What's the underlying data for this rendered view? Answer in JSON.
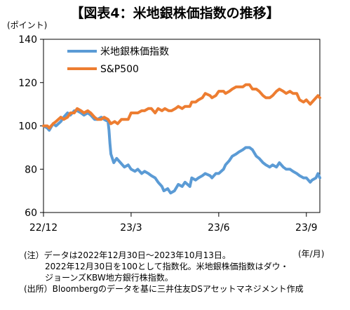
{
  "chart_data": {
    "type": "line",
    "title": "【図表4：米地銀株価指数の推移】",
    "ylabel": "(ポイント)",
    "xunit": "(年/月)",
    "ylim": [
      60,
      140
    ],
    "yticks": [
      60,
      80,
      100,
      120,
      140
    ],
    "xticks": [
      {
        "label": "22/12",
        "x": "2022-12-30"
      },
      {
        "label": "23/3",
        "x": "2023-03-31"
      },
      {
        "label": "23/6",
        "x": "2023-06-30"
      },
      {
        "label": "23/9",
        "x": "2023-09-29"
      }
    ],
    "xlim": [
      "2022-12-30",
      "2023-10-13"
    ],
    "grid": false,
    "legend_position": "top-left",
    "series": [
      {
        "name": "米地銀株価指数",
        "color": "#5B9BD5",
        "points": [
          [
            "2022-12-30",
            100
          ],
          [
            "2023-01-03",
            99
          ],
          [
            "2023-01-05",
            98
          ],
          [
            "2023-01-09",
            101
          ],
          [
            "2023-01-12",
            100
          ],
          [
            "2023-01-17",
            102
          ],
          [
            "2023-01-20",
            104
          ],
          [
            "2023-01-24",
            106
          ],
          [
            "2023-01-27",
            105
          ],
          [
            "2023-01-31",
            107
          ],
          [
            "2023-02-03",
            107
          ],
          [
            "2023-02-07",
            106
          ],
          [
            "2023-02-10",
            105
          ],
          [
            "2023-02-14",
            106
          ],
          [
            "2023-02-17",
            105
          ],
          [
            "2023-02-21",
            103
          ],
          [
            "2023-02-24",
            103
          ],
          [
            "2023-02-28",
            104
          ],
          [
            "2023-03-03",
            103
          ],
          [
            "2023-03-07",
            102
          ],
          [
            "2023-03-08",
            98
          ],
          [
            "2023-03-09",
            92
          ],
          [
            "2023-03-10",
            87
          ],
          [
            "2023-03-13",
            83
          ],
          [
            "2023-03-16",
            85
          ],
          [
            "2023-03-20",
            83
          ],
          [
            "2023-03-24",
            81
          ],
          [
            "2023-03-28",
            82
          ],
          [
            "2023-03-31",
            80
          ],
          [
            "2023-04-04",
            79
          ],
          [
            "2023-04-07",
            80
          ],
          [
            "2023-04-11",
            78
          ],
          [
            "2023-04-14",
            79
          ],
          [
            "2023-04-18",
            78
          ],
          [
            "2023-04-21",
            77
          ],
          [
            "2023-04-25",
            76
          ],
          [
            "2023-04-28",
            74
          ],
          [
            "2023-05-02",
            72
          ],
          [
            "2023-05-04",
            70
          ],
          [
            "2023-05-08",
            71
          ],
          [
            "2023-05-11",
            69
          ],
          [
            "2023-05-15",
            70
          ],
          [
            "2023-05-19",
            73
          ],
          [
            "2023-05-23",
            72
          ],
          [
            "2023-05-26",
            74
          ],
          [
            "2023-05-31",
            72
          ],
          [
            "2023-06-02",
            76
          ],
          [
            "2023-06-06",
            75
          ],
          [
            "2023-06-09",
            76
          ],
          [
            "2023-06-13",
            77
          ],
          [
            "2023-06-16",
            78
          ],
          [
            "2023-06-21",
            77
          ],
          [
            "2023-06-23",
            76
          ],
          [
            "2023-06-27",
            78
          ],
          [
            "2023-06-30",
            78
          ],
          [
            "2023-07-05",
            80
          ],
          [
            "2023-07-07",
            82
          ],
          [
            "2023-07-11",
            84
          ],
          [
            "2023-07-14",
            86
          ],
          [
            "2023-07-18",
            87
          ],
          [
            "2023-07-21",
            88
          ],
          [
            "2023-07-25",
            89
          ],
          [
            "2023-07-28",
            90
          ],
          [
            "2023-08-01",
            90
          ],
          [
            "2023-08-04",
            89
          ],
          [
            "2023-08-08",
            86
          ],
          [
            "2023-08-11",
            85
          ],
          [
            "2023-08-15",
            83
          ],
          [
            "2023-08-18",
            82
          ],
          [
            "2023-08-22",
            81
          ],
          [
            "2023-08-25",
            82
          ],
          [
            "2023-08-29",
            81
          ],
          [
            "2023-09-01",
            83
          ],
          [
            "2023-09-05",
            81
          ],
          [
            "2023-09-08",
            80
          ],
          [
            "2023-09-12",
            80
          ],
          [
            "2023-09-15",
            79
          ],
          [
            "2023-09-19",
            78
          ],
          [
            "2023-09-22",
            77
          ],
          [
            "2023-09-26",
            76
          ],
          [
            "2023-09-29",
            76
          ],
          [
            "2023-10-03",
            74
          ],
          [
            "2023-10-05",
            75
          ],
          [
            "2023-10-09",
            76
          ],
          [
            "2023-10-11",
            78
          ],
          [
            "2023-10-13",
            76
          ]
        ]
      },
      {
        "name": "S&P500",
        "color": "#ED7D31",
        "points": [
          [
            "2022-12-30",
            100
          ],
          [
            "2023-01-03",
            100
          ],
          [
            "2023-01-05",
            99
          ],
          [
            "2023-01-09",
            101
          ],
          [
            "2023-01-12",
            102
          ],
          [
            "2023-01-17",
            104
          ],
          [
            "2023-01-20",
            103
          ],
          [
            "2023-01-24",
            104
          ],
          [
            "2023-01-27",
            106
          ],
          [
            "2023-01-31",
            106
          ],
          [
            "2023-02-03",
            108
          ],
          [
            "2023-02-07",
            107
          ],
          [
            "2023-02-10",
            106
          ],
          [
            "2023-02-14",
            107
          ],
          [
            "2023-02-17",
            106
          ],
          [
            "2023-02-21",
            104
          ],
          [
            "2023-02-24",
            103
          ],
          [
            "2023-02-28",
            103
          ],
          [
            "2023-03-03",
            104
          ],
          [
            "2023-03-07",
            103
          ],
          [
            "2023-03-10",
            101
          ],
          [
            "2023-03-14",
            102
          ],
          [
            "2023-03-17",
            101
          ],
          [
            "2023-03-21",
            103
          ],
          [
            "2023-03-24",
            103
          ],
          [
            "2023-03-28",
            103
          ],
          [
            "2023-03-31",
            106
          ],
          [
            "2023-04-04",
            106
          ],
          [
            "2023-04-07",
            106
          ],
          [
            "2023-04-11",
            107
          ],
          [
            "2023-04-14",
            107
          ],
          [
            "2023-04-18",
            108
          ],
          [
            "2023-04-21",
            108
          ],
          [
            "2023-04-25",
            106
          ],
          [
            "2023-04-28",
            108
          ],
          [
            "2023-05-02",
            107
          ],
          [
            "2023-05-05",
            108
          ],
          [
            "2023-05-09",
            107
          ],
          [
            "2023-05-12",
            107
          ],
          [
            "2023-05-16",
            108
          ],
          [
            "2023-05-19",
            109
          ],
          [
            "2023-05-23",
            108
          ],
          [
            "2023-05-26",
            109
          ],
          [
            "2023-05-31",
            109
          ],
          [
            "2023-06-02",
            111
          ],
          [
            "2023-06-06",
            111
          ],
          [
            "2023-06-09",
            112
          ],
          [
            "2023-06-13",
            113
          ],
          [
            "2023-06-16",
            115
          ],
          [
            "2023-06-21",
            114
          ],
          [
            "2023-06-23",
            113
          ],
          [
            "2023-06-27",
            114
          ],
          [
            "2023-06-30",
            116
          ],
          [
            "2023-07-05",
            116
          ],
          [
            "2023-07-07",
            115
          ],
          [
            "2023-07-11",
            116
          ],
          [
            "2023-07-14",
            117
          ],
          [
            "2023-07-18",
            118
          ],
          [
            "2023-07-21",
            118
          ],
          [
            "2023-07-25",
            118
          ],
          [
            "2023-07-28",
            119
          ],
          [
            "2023-08-01",
            119
          ],
          [
            "2023-08-04",
            117
          ],
          [
            "2023-08-08",
            117
          ],
          [
            "2023-08-11",
            116
          ],
          [
            "2023-08-15",
            114
          ],
          [
            "2023-08-18",
            113
          ],
          [
            "2023-08-22",
            113
          ],
          [
            "2023-08-25",
            114
          ],
          [
            "2023-08-29",
            116
          ],
          [
            "2023-09-01",
            117
          ],
          [
            "2023-09-05",
            116
          ],
          [
            "2023-09-08",
            115
          ],
          [
            "2023-09-12",
            116
          ],
          [
            "2023-09-15",
            115
          ],
          [
            "2023-09-19",
            115
          ],
          [
            "2023-09-22",
            112
          ],
          [
            "2023-09-26",
            111
          ],
          [
            "2023-09-29",
            112
          ],
          [
            "2023-10-03",
            110
          ],
          [
            "2023-10-05",
            111
          ],
          [
            "2023-10-09",
            113
          ],
          [
            "2023-10-11",
            114
          ],
          [
            "2023-10-13",
            113
          ]
        ]
      }
    ]
  },
  "notes": [
    "(注）データは2022年12月30日～2023年10月13日。",
    "2022年12月30日を100として指数化。米地銀株価指数はダウ・",
    "ジョーンズKBW地方銀行株指数。",
    "(出所）Bloombergのデータを基に三井住友DSアセットマネジメント作成"
  ]
}
